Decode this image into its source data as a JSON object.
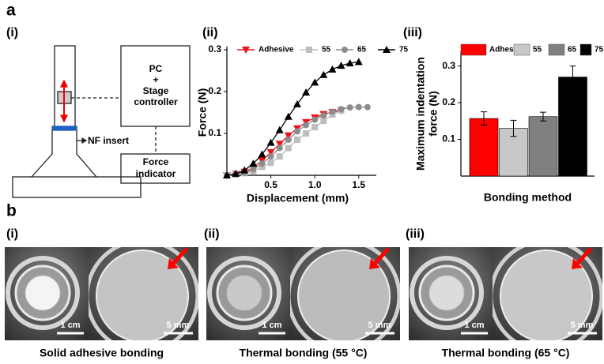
{
  "figure": {
    "panel_a": "a",
    "panel_b": "b",
    "a_sub": [
      "(i)",
      "(ii)",
      "(iii)"
    ],
    "b_sub": [
      "(i)",
      "(ii)",
      "(iii)"
    ]
  },
  "diagram": {
    "pc_box": [
      "PC",
      "+",
      "Stage",
      "controller"
    ],
    "force_box": [
      "Force",
      "indicator"
    ],
    "insert_label": "NF insert"
  },
  "chart_data": [
    {
      "type": "line",
      "xlabel": "Displacement (mm)",
      "ylabel": "Force (N)",
      "xlim": [
        0,
        1.7
      ],
      "xticks": [
        0.5,
        {
          "value": 1,
          "label": "1.0"
        },
        1.5
      ],
      "ylim": [
        0,
        0.3
      ],
      "yticks": [
        0.1,
        0.2,
        0.3
      ],
      "series": [
        {
          "name": "Adhesive",
          "color": "#e8141c",
          "marker": "triangle-down",
          "x": [
            0,
            0.1,
            0.2,
            0.3,
            0.4,
            0.5,
            0.6,
            0.7,
            0.8,
            0.9,
            1.0,
            1.1,
            1.2,
            1.3
          ],
          "values": [
            0,
            0.003,
            0.008,
            0.018,
            0.035,
            0.055,
            0.075,
            0.095,
            0.112,
            0.127,
            0.138,
            0.146,
            0.151,
            0.155
          ]
        },
        {
          "name": "55",
          "color": "#bdbdbd",
          "marker": "square",
          "x": [
            0,
            0.1,
            0.2,
            0.3,
            0.4,
            0.5,
            0.6,
            0.7,
            0.8,
            0.9,
            1.0,
            1.1,
            1.2,
            1.3
          ],
          "values": [
            0,
            0.002,
            0.005,
            0.01,
            0.02,
            0.03,
            0.045,
            0.065,
            0.085,
            0.1,
            0.115,
            0.13,
            0.145,
            0.155
          ]
        },
        {
          "name": "65",
          "color": "#8c8c8c",
          "marker": "circle",
          "x": [
            0,
            0.1,
            0.2,
            0.3,
            0.4,
            0.5,
            0.6,
            0.7,
            0.8,
            0.9,
            1.0,
            1.1,
            1.2,
            1.3,
            1.4,
            1.5,
            1.6
          ],
          "values": [
            0,
            0.002,
            0.006,
            0.014,
            0.028,
            0.045,
            0.065,
            0.085,
            0.105,
            0.12,
            0.133,
            0.143,
            0.152,
            0.158,
            0.162,
            0.163,
            0.163
          ]
        },
        {
          "name": "75",
          "color": "#000000",
          "marker": "triangle-up",
          "x": [
            0,
            0.1,
            0.2,
            0.3,
            0.4,
            0.5,
            0.6,
            0.7,
            0.8,
            0.9,
            1.0,
            1.1,
            1.2,
            1.3,
            1.4,
            1.5
          ],
          "values": [
            0,
            0.004,
            0.012,
            0.028,
            0.05,
            0.078,
            0.108,
            0.14,
            0.17,
            0.198,
            0.222,
            0.24,
            0.253,
            0.262,
            0.268,
            0.271
          ]
        }
      ]
    },
    {
      "type": "bar",
      "xlabel": "Bonding method",
      "ylabel": [
        "Maximum indentation",
        "force (N)"
      ],
      "categories": [
        "Adhesive",
        "55",
        "65",
        "75"
      ],
      "values": [
        0.157,
        0.13,
        0.162,
        0.27
      ],
      "errors": [
        0.018,
        0.022,
        0.012,
        0.03
      ],
      "colors": [
        "#ff0000",
        "#c8c8c8",
        "#808080",
        "#000000"
      ],
      "ylim": [
        0,
        0.34
      ],
      "yticks": [
        0.1,
        0.2,
        0.3
      ]
    }
  ],
  "photos": [
    {
      "scale_left": "1 cm",
      "scale_right": "5 mm",
      "caption": "Solid adhesive bonding"
    },
    {
      "scale_left": "1 cm",
      "scale_right": "5 mm",
      "caption": "Thermal bonding (55 °C)"
    },
    {
      "scale_left": "1 cm",
      "scale_right": "5 mm",
      "caption": "Thermal bonding (65 °C)"
    }
  ]
}
